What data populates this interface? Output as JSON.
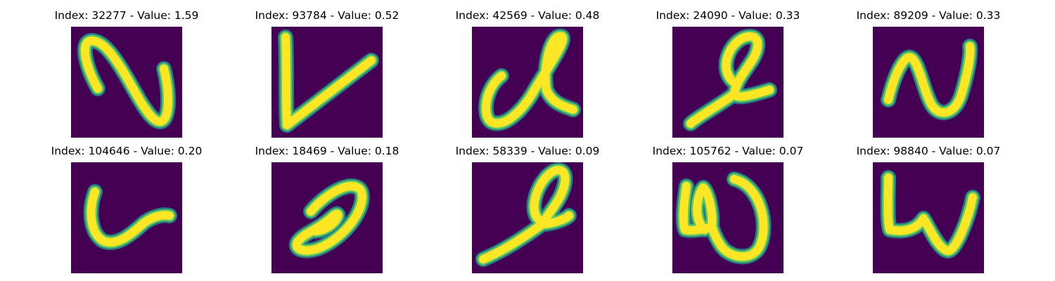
{
  "colors": {
    "background": "#440154",
    "glyph_halo": "#21918c",
    "glyph_edge": "#5ec962",
    "glyph_core": "#fde725"
  },
  "panels": [
    {
      "title": "Index: 32277 - Value: 1.59"
    },
    {
      "title": "Index: 93784 - Value: 0.52"
    },
    {
      "title": "Index: 42569 - Value: 0.48"
    },
    {
      "title": "Index: 24090 - Value: 0.33"
    },
    {
      "title": "Index: 89209 - Value: 0.33"
    },
    {
      "title": "Index: 104646 - Value: 0.20"
    },
    {
      "title": "Index: 18469 - Value: 0.18"
    },
    {
      "title": "Index: 58339 - Value: 0.09"
    },
    {
      "title": "Index: 105762 - Value: 0.07"
    },
    {
      "title": "Index: 98840 - Value: 0.07"
    }
  ]
}
